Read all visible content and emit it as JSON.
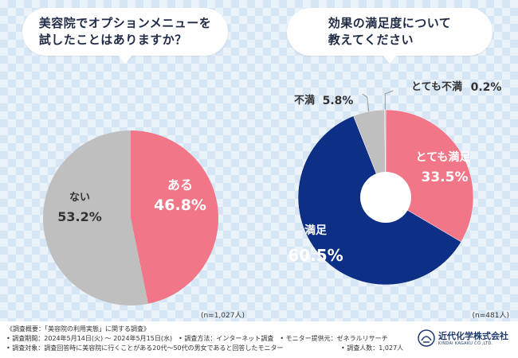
{
  "colors": {
    "pink": "#f07688",
    "gray": "#bfbfbf",
    "navy": "#0e2f86",
    "light_gray": "#c8c8c8"
  },
  "chart_data": [
    {
      "type": "pie",
      "title": "美容院でオプションメニューを\n試したことはありますか？",
      "n_label": "(n=1,027人)",
      "slices": [
        {
          "label": "ある",
          "value": 46.8,
          "value_text": "46.8%",
          "color": "#f07688"
        },
        {
          "label": "ない",
          "value": 53.2,
          "value_text": "53.2%",
          "color": "#bfbfbf"
        }
      ]
    },
    {
      "type": "pie",
      "donut": true,
      "title": "効果の満足度について\n教えてください",
      "n_label": "(n=481人)",
      "slices": [
        {
          "label": "とても満足",
          "value": 33.5,
          "value_text": "33.5%",
          "color": "#f07688"
        },
        {
          "label": "満足",
          "value": 60.5,
          "value_text": "60.5%",
          "color": "#0e2f86"
        },
        {
          "label": "不満",
          "value": 5.8,
          "value_text": "5.8%",
          "color": "#bfbfbf"
        },
        {
          "label": "とても不満",
          "value": 0.2,
          "value_text": "0.2%",
          "color": "#bfbfbf"
        }
      ]
    }
  ],
  "footer": {
    "line1": "《調査概要：「美容院の利用実態」に関する調査》",
    "line2": "• 調査期間：2024年5月14日(火) ～ 2024年5月15日(水)　• 調査方法：インターネット調査　• モニター提供元：ゼネラルリサーチ",
    "line3": "• 調査対象：調査回答時に美容院に行くことがある20代～50代の男女であると回答したモニター",
    "count": "• 調査人数：1,027人",
    "logo_name": "近代化学株式会社",
    "logo_sub": "KINDAI KAGAKU CO.,LTD."
  }
}
